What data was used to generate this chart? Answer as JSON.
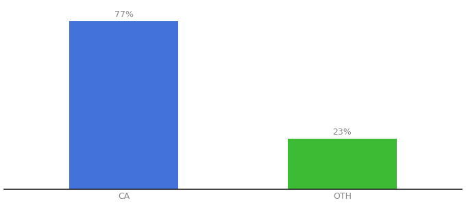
{
  "categories": [
    "CA",
    "OTH"
  ],
  "values": [
    77,
    23
  ],
  "bar_colors": [
    "#4472db",
    "#3dbb35"
  ],
  "label_texts": [
    "77%",
    "23%"
  ],
  "background_color": "#ffffff",
  "text_color": "#888888",
  "axis_line_color": "#222222",
  "bar_width": 0.5,
  "ylim": [
    0,
    85
  ],
  "label_fontsize": 9,
  "tick_fontsize": 9
}
